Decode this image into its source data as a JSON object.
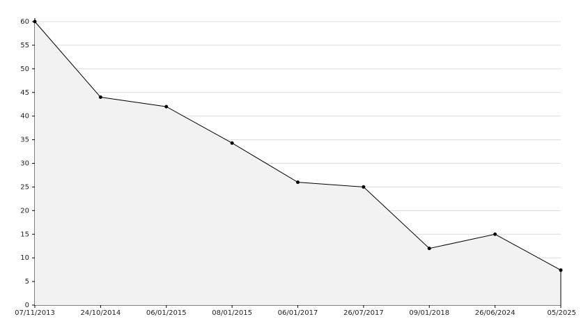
{
  "chart_data": {
    "type": "area",
    "categories": [
      "07/11/2013",
      "24/10/2014",
      "06/01/2015",
      "08/01/2015",
      "06/01/2017",
      "26/07/2017",
      "09/01/2018",
      "26/06/2024",
      "05/2025"
    ],
    "values": [
      60,
      44,
      42,
      34.3,
      26,
      25,
      12,
      15,
      7.4
    ],
    "color": "#000000",
    "fill": "#f2f2f2",
    "ylim": [
      0,
      60
    ],
    "yticks": [
      0,
      5,
      10,
      15,
      20,
      25,
      30,
      35,
      40,
      45,
      50,
      55,
      60
    ],
    "grid": true
  }
}
